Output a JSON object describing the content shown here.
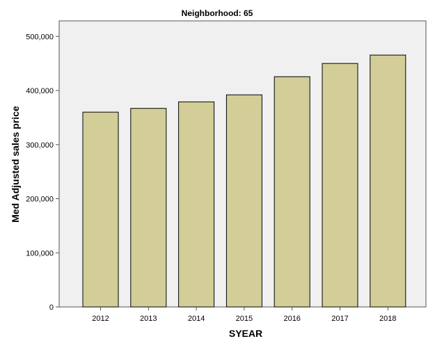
{
  "chart_data": {
    "type": "bar",
    "title": "Neighborhood: 65",
    "xlabel": "SYEAR",
    "ylabel": "Med Adjusted sales price",
    "categories": [
      "2012",
      "2013",
      "2014",
      "2015",
      "2016",
      "2017",
      "2018"
    ],
    "values": [
      360000,
      367000,
      379000,
      392000,
      425500,
      450000,
      465500
    ],
    "ylim": [
      0,
      500000
    ],
    "yticks": [
      0,
      100000,
      200000,
      300000,
      400000,
      500000
    ],
    "ytick_labels": [
      "0",
      "100,000",
      "200,000",
      "300,000",
      "400,000",
      "500,000"
    ],
    "grid": false,
    "legend": "none",
    "colors": {
      "bar": "#d3ce98",
      "plot_background": "#f0f0f0",
      "bar_stroke": "#000000"
    }
  }
}
